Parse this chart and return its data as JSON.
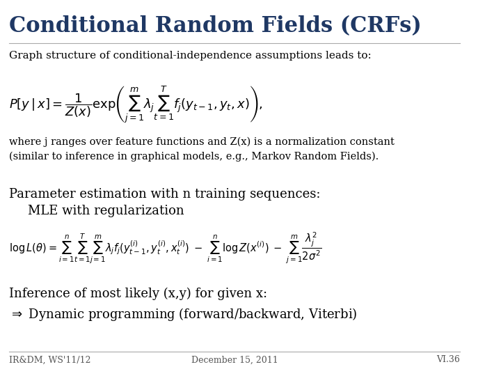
{
  "title": "Conditional Random Fields (CRFs)",
  "title_color": "#1F3864",
  "bg_color": "#FFFFFF",
  "subtitle": "Graph structure of conditional-independence assumptions leads to:",
  "formula1": "$P[y\\,|\\,x] = \\dfrac{1}{Z(x)}\\exp\\!\\left(\\sum_{j=1}^{m} \\lambda_j \\sum_{t=1}^{T} f_j(y_{t-1}, y_t, x)\\right),$",
  "note1": "where j ranges over feature functions and Z(x) is a normalization constant\n(similar to inference in graphical models, e.g., Markov Random Fields).",
  "section2": "Parameter estimation with n training sequences:\n    MLE with regularization",
  "formula2": "$\\log L(\\theta) = \\sum_{i=1}^{n}\\sum_{t=1}^{T}\\sum_{j=1}^{m} \\lambda_j f_j(y_{t-1}^{(i)}, y_t^{(i)}, x_t^{(i)}) \\;-\\; \\sum_{i=1}^{n} \\log Z(x^{(i)}) \\;-\\; \\sum_{j=1}^{m} \\dfrac{\\lambda_j^2}{2\\sigma^2}$",
  "section3": "Inference of most likely (x,y) for given x:",
  "section3b": "$\\Rightarrow$ Dynamic programming (forward/backward, Viterbi)",
  "footer_left": "IR&DM, WS'11/12",
  "footer_center": "December 15, 2011",
  "footer_right": "VI.36",
  "text_color": "#000000",
  "footer_color": "#555555"
}
